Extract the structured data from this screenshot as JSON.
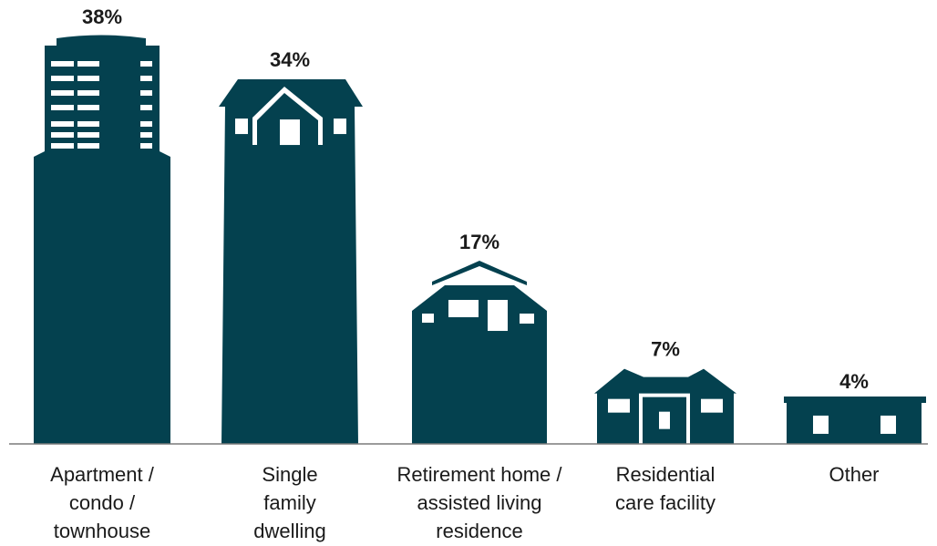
{
  "colors": {
    "building": "#04414f",
    "window": "#ffffff",
    "baseline": "#7a7a7a",
    "text": "#1a1a1a"
  },
  "chart_data": {
    "type": "bar",
    "title": "",
    "xlabel": "",
    "ylabel": "",
    "ylim": [
      0,
      38
    ],
    "grid": false,
    "legend": "none",
    "categories": [
      "Apartment / condo / townhouse",
      "Single family dwelling",
      "Retirement home / assisted living residence",
      "Residential care facility",
      "Other"
    ],
    "category_lines": [
      [
        "Apartment /",
        "condo /",
        "townhouse"
      ],
      [
        "Single",
        "family",
        "dwelling"
      ],
      [
        "Retirement home /",
        "assisted living",
        "residence"
      ],
      [
        "Residential",
        "care facility"
      ],
      [
        "Other"
      ]
    ],
    "values": [
      38,
      34,
      17,
      7,
      4
    ],
    "value_labels": [
      "38%",
      "34%",
      "17%",
      "7%",
      "4%"
    ],
    "icons": [
      "apartment-tower-icon",
      "house-icon",
      "retirement-home-icon",
      "care-facility-icon",
      "other-building-icon"
    ]
  }
}
